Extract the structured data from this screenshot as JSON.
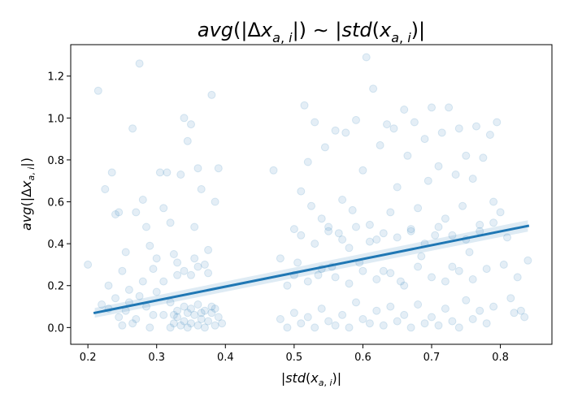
{
  "chart_data": {
    "type": "scatter",
    "title": "avg(|Δx_{a,i}|) ~ |std(x_{a,i})|",
    "xlabel": "|std(x_{a,i})|",
    "ylabel": "avg(|Δx_{a,i}|)",
    "xlim": [
      0.175,
      0.875
    ],
    "ylim": [
      -0.08,
      1.35
    ],
    "xticks": [
      0.2,
      0.3,
      0.4,
      0.5,
      0.6,
      0.7,
      0.8
    ],
    "xtick_labels": [
      "0.2",
      "0.3",
      "0.4",
      "0.5",
      "0.6",
      "0.7",
      "0.8"
    ],
    "yticks": [
      0.0,
      0.2,
      0.4,
      0.6,
      0.8,
      1.0,
      1.2
    ],
    "ytick_labels": [
      "0.0",
      "0.2",
      "0.4",
      "0.6",
      "0.8",
      "1.0",
      "1.2"
    ],
    "grid": false,
    "point_color": "#1f77b4",
    "point_opacity": 0.12,
    "regression": {
      "x": [
        0.21,
        0.84
      ],
      "y": [
        0.07,
        0.485
      ],
      "color": "#1f77b4"
    },
    "points": [
      [
        0.2,
        0.3
      ],
      [
        0.215,
        1.13
      ],
      [
        0.22,
        0.11
      ],
      [
        0.225,
        0.66
      ],
      [
        0.23,
        0.2
      ],
      [
        0.235,
        0.74
      ],
      [
        0.24,
        0.54
      ],
      [
        0.245,
        0.55
      ],
      [
        0.25,
        0.27
      ],
      [
        0.255,
        0.36
      ],
      [
        0.26,
        0.12
      ],
      [
        0.265,
        0.95
      ],
      [
        0.27,
        0.55
      ],
      [
        0.275,
        1.26
      ],
      [
        0.28,
        0.61
      ],
      [
        0.285,
        0.48
      ],
      [
        0.29,
        0.39
      ],
      [
        0.295,
        0.28
      ],
      [
        0.3,
        0.33
      ],
      [
        0.305,
        0.74
      ],
      [
        0.31,
        0.57
      ],
      [
        0.315,
        0.74
      ],
      [
        0.32,
        0.5
      ],
      [
        0.325,
        0.35
      ],
      [
        0.33,
        0.25
      ],
      [
        0.335,
        0.73
      ],
      [
        0.34,
        1.0
      ],
      [
        0.345,
        0.89
      ],
      [
        0.35,
        0.97
      ],
      [
        0.355,
        0.48
      ],
      [
        0.36,
        0.76
      ],
      [
        0.365,
        0.66
      ],
      [
        0.37,
        0.3
      ],
      [
        0.375,
        0.37
      ],
      [
        0.38,
        1.11
      ],
      [
        0.385,
        0.6
      ],
      [
        0.39,
        0.76
      ],
      [
        0.245,
        0.05
      ],
      [
        0.255,
        0.08
      ],
      [
        0.265,
        0.02
      ],
      [
        0.275,
        0.15
      ],
      [
        0.285,
        0.1
      ],
      [
        0.295,
        0.06
      ],
      [
        0.24,
        0.14
      ],
      [
        0.26,
        0.18
      ],
      [
        0.28,
        0.22
      ],
      [
        0.3,
        0.17
      ],
      [
        0.31,
        0.22
      ],
      [
        0.32,
        0.12
      ],
      [
        0.25,
        0.01
      ],
      [
        0.27,
        0.04
      ],
      [
        0.29,
        0.0
      ],
      [
        0.23,
        0.09
      ],
      [
        0.31,
        0.06
      ],
      [
        0.32,
        0.0
      ],
      [
        0.325,
        0.02
      ],
      [
        0.33,
        0.05
      ],
      [
        0.335,
        0.01
      ],
      [
        0.34,
        0.03
      ],
      [
        0.345,
        0.0
      ],
      [
        0.35,
        0.02
      ],
      [
        0.355,
        0.06
      ],
      [
        0.36,
        0.01
      ],
      [
        0.365,
        0.04
      ],
      [
        0.37,
        0.0
      ],
      [
        0.375,
        0.03
      ],
      [
        0.38,
        0.07
      ],
      [
        0.385,
        0.01
      ],
      [
        0.39,
        0.05
      ],
      [
        0.395,
        0.02
      ],
      [
        0.33,
        0.08
      ],
      [
        0.34,
        0.1
      ],
      [
        0.35,
        0.09
      ],
      [
        0.36,
        0.11
      ],
      [
        0.37,
        0.08
      ],
      [
        0.38,
        0.1
      ],
      [
        0.325,
        0.06
      ],
      [
        0.345,
        0.07
      ],
      [
        0.365,
        0.07
      ],
      [
        0.385,
        0.09
      ],
      [
        0.34,
        0.27
      ],
      [
        0.35,
        0.25
      ],
      [
        0.36,
        0.29
      ],
      [
        0.33,
        0.31
      ],
      [
        0.375,
        0.26
      ],
      [
        0.355,
        0.33
      ],
      [
        0.47,
        0.75
      ],
      [
        0.48,
        0.33
      ],
      [
        0.49,
        0.2
      ],
      [
        0.5,
        0.47
      ],
      [
        0.505,
        0.31
      ],
      [
        0.51,
        0.65
      ],
      [
        0.515,
        1.06
      ],
      [
        0.52,
        0.79
      ],
      [
        0.525,
        0.58
      ],
      [
        0.53,
        0.98
      ],
      [
        0.535,
        0.25
      ],
      [
        0.54,
        0.52
      ],
      [
        0.545,
        0.86
      ],
      [
        0.55,
        0.48
      ],
      [
        0.555,
        0.29
      ],
      [
        0.56,
        0.94
      ],
      [
        0.565,
        0.45
      ],
      [
        0.57,
        0.61
      ],
      [
        0.575,
        0.93
      ],
      [
        0.58,
        0.38
      ],
      [
        0.585,
        0.56
      ],
      [
        0.59,
        0.99
      ],
      [
        0.595,
        0.31
      ],
      [
        0.6,
        0.75
      ],
      [
        0.605,
        1.29
      ],
      [
        0.61,
        0.49
      ],
      [
        0.615,
        1.14
      ],
      [
        0.62,
        0.42
      ],
      [
        0.625,
        0.87
      ],
      [
        0.63,
        0.27
      ],
      [
        0.635,
        0.97
      ],
      [
        0.64,
        0.55
      ],
      [
        0.645,
        0.95
      ],
      [
        0.65,
        0.67
      ],
      [
        0.655,
        0.22
      ],
      [
        0.66,
        1.04
      ],
      [
        0.665,
        0.82
      ],
      [
        0.67,
        0.46
      ],
      [
        0.675,
        0.98
      ],
      [
        0.68,
        0.57
      ],
      [
        0.685,
        0.34
      ],
      [
        0.69,
        0.9
      ],
      [
        0.695,
        0.7
      ],
      [
        0.7,
        1.05
      ],
      [
        0.705,
        0.44
      ],
      [
        0.71,
        0.77
      ],
      [
        0.715,
        0.93
      ],
      [
        0.72,
        0.52
      ],
      [
        0.725,
        1.05
      ],
      [
        0.73,
        0.29
      ],
      [
        0.735,
        0.73
      ],
      [
        0.74,
        0.95
      ],
      [
        0.745,
        0.58
      ],
      [
        0.75,
        0.82
      ],
      [
        0.755,
        0.36
      ],
      [
        0.76,
        0.71
      ],
      [
        0.765,
        0.96
      ],
      [
        0.77,
        0.49
      ],
      [
        0.775,
        0.81
      ],
      [
        0.78,
        0.28
      ],
      [
        0.785,
        0.92
      ],
      [
        0.79,
        0.6
      ],
      [
        0.795,
        0.98
      ],
      [
        0.8,
        0.55
      ],
      [
        0.805,
        0.3
      ],
      [
        0.81,
        0.43
      ],
      [
        0.815,
        0.14
      ],
      [
        0.82,
        0.07
      ],
      [
        0.825,
        0.24
      ],
      [
        0.83,
        0.08
      ],
      [
        0.835,
        0.05
      ],
      [
        0.84,
        0.32
      ],
      [
        0.48,
        0.04
      ],
      [
        0.49,
        0.0
      ],
      [
        0.5,
        0.07
      ],
      [
        0.51,
        0.02
      ],
      [
        0.52,
        0.05
      ],
      [
        0.53,
        0.0
      ],
      [
        0.54,
        0.09
      ],
      [
        0.55,
        0.03
      ],
      [
        0.56,
        0.01
      ],
      [
        0.57,
        0.06
      ],
      [
        0.58,
        0.0
      ],
      [
        0.59,
        0.12
      ],
      [
        0.6,
        0.04
      ],
      [
        0.61,
        0.02
      ],
      [
        0.62,
        0.08
      ],
      [
        0.63,
        0.01
      ],
      [
        0.64,
        0.1
      ],
      [
        0.65,
        0.03
      ],
      [
        0.66,
        0.06
      ],
      [
        0.67,
        0.0
      ],
      [
        0.68,
        0.11
      ],
      [
        0.69,
        0.02
      ],
      [
        0.7,
        0.05
      ],
      [
        0.71,
        0.01
      ],
      [
        0.72,
        0.09
      ],
      [
        0.73,
        0.03
      ],
      [
        0.74,
        0.0
      ],
      [
        0.75,
        0.13
      ],
      [
        0.76,
        0.04
      ],
      [
        0.77,
        0.08
      ],
      [
        0.78,
        0.02
      ],
      [
        0.79,
        0.1
      ],
      [
        0.5,
        0.25
      ],
      [
        0.52,
        0.22
      ],
      [
        0.54,
        0.28
      ],
      [
        0.56,
        0.24
      ],
      [
        0.58,
        0.21
      ],
      [
        0.6,
        0.27
      ],
      [
        0.62,
        0.23
      ],
      [
        0.64,
        0.26
      ],
      [
        0.66,
        0.2
      ],
      [
        0.68,
        0.29
      ],
      [
        0.7,
        0.24
      ],
      [
        0.72,
        0.22
      ],
      [
        0.74,
        0.27
      ],
      [
        0.76,
        0.23
      ],
      [
        0.51,
        0.44
      ],
      [
        0.53,
        0.4
      ],
      [
        0.55,
        0.46
      ],
      [
        0.57,
        0.42
      ],
      [
        0.59,
        0.48
      ],
      [
        0.61,
        0.41
      ],
      [
        0.63,
        0.45
      ],
      [
        0.65,
        0.43
      ],
      [
        0.67,
        0.47
      ],
      [
        0.69,
        0.4
      ],
      [
        0.71,
        0.48
      ],
      [
        0.73,
        0.44
      ],
      [
        0.75,
        0.42
      ],
      [
        0.77,
        0.46
      ],
      [
        0.79,
        0.5
      ]
    ]
  }
}
